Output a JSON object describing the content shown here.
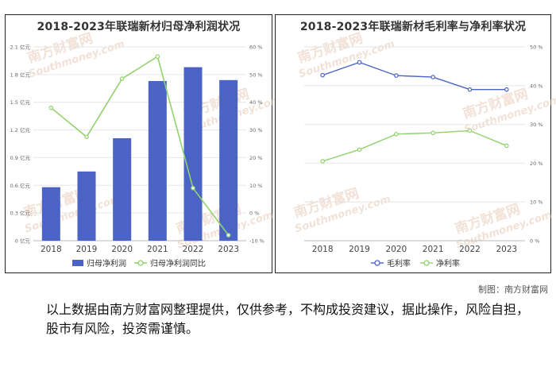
{
  "credit": "制图：南方财富网",
  "disclaimer": "以上数据由南方财富网整理提供，仅供参考，不构成投资建议，据此操作，风险自担，股市有风险，投资需谨慎。",
  "watermark": {
    "brand": "南方财富网",
    "site": "Southmoney.com"
  },
  "chart_data": [
    {
      "type": "bar+line",
      "title": "2018-2023年联瑞新材归母净利润状况",
      "categories": [
        "2018",
        "2019",
        "2020",
        "2021",
        "2022",
        "2023"
      ],
      "y_left": {
        "min": 0,
        "max": 2.1,
        "ticks": [
          "0 亿元",
          "0.3 亿元",
          "0.6 亿元",
          "0.9 亿元",
          "1.2 亿元",
          "1.5 亿元",
          "1.8 亿元",
          "2.1 亿元"
        ],
        "tick_values": [
          0,
          0.3,
          0.6,
          0.9,
          1.2,
          1.5,
          1.8,
          2.1
        ]
      },
      "y_right": {
        "min": -10,
        "max": 60,
        "ticks": [
          "-10 %",
          "0 %",
          "10 %",
          "20 %",
          "30 %",
          "40 %",
          "50 %",
          "60 %"
        ],
        "tick_values": [
          -10,
          0,
          10,
          20,
          30,
          40,
          50,
          60
        ]
      },
      "series": [
        {
          "name": "归母净利润",
          "kind": "bar",
          "axis": "left",
          "color": "#4a63c4",
          "values": [
            0.58,
            0.75,
            1.11,
            1.73,
            1.88,
            1.74
          ]
        },
        {
          "name": "归母净利润同比",
          "kind": "line",
          "axis": "right",
          "color": "#91d26c",
          "values": [
            38,
            27.5,
            48.5,
            56.5,
            9,
            -8
          ]
        }
      ],
      "legend": "bottom"
    },
    {
      "type": "line",
      "title": "2018-2023年联瑞新材毛利率与净利率状况",
      "categories": [
        "2018",
        "2019",
        "2020",
        "2021",
        "2022",
        "2023"
      ],
      "y_right": {
        "min": 0,
        "max": 50,
        "ticks": [
          "0 %",
          "10 %",
          "20 %",
          "30 %",
          "40 %",
          "50 %"
        ],
        "tick_values": [
          0,
          10,
          20,
          30,
          40,
          50
        ]
      },
      "series": [
        {
          "name": "毛利率",
          "kind": "line",
          "color": "#4a63c4",
          "values": [
            42.7,
            46,
            42.6,
            42.2,
            39,
            39
          ]
        },
        {
          "name": "净利率",
          "kind": "line",
          "color": "#91d26c",
          "values": [
            20.5,
            23.5,
            27.5,
            27.8,
            28.4,
            24.5
          ]
        }
      ],
      "legend": "bottom"
    }
  ]
}
